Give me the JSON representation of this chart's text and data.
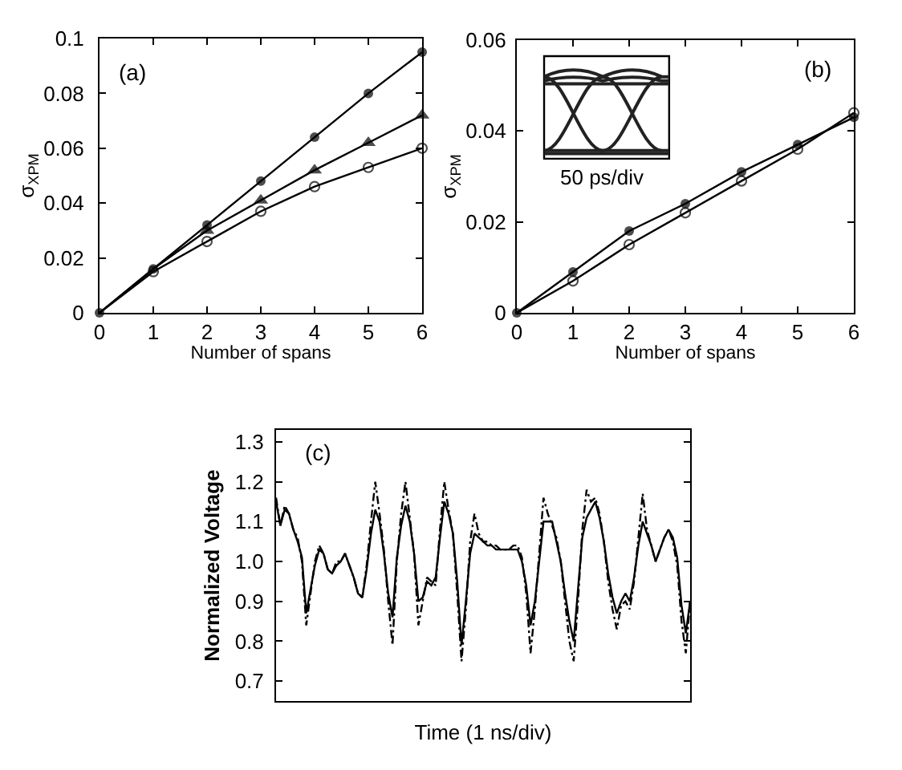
{
  "chart_data": [
    {
      "type": "line",
      "xlabel": "Number of spans",
      "ylabel": "σ$_{XPM}$",
      "annotations": [
        "(a)"
      ],
      "line_style": "solid",
      "x": [
        0,
        1,
        2,
        3,
        4,
        5,
        6
      ],
      "xlim": [
        0,
        6
      ],
      "xticks": [
        0,
        1,
        2,
        3,
        4,
        5,
        6
      ],
      "ylim": [
        0,
        0.1
      ],
      "yticks": [
        0,
        0.02,
        0.04,
        0.06,
        0.08,
        0.1
      ],
      "series": [
        {
          "color": "#000000",
          "marker": "circle",
          "values": [
            0,
            0.016,
            0.032,
            0.048,
            0.064,
            0.08,
            0.095
          ]
        },
        {
          "color": "#000000",
          "marker": "triangle",
          "values": [
            0,
            0.016,
            0.03,
            0.041,
            0.052,
            0.062,
            0.072
          ]
        },
        {
          "color": "#000000",
          "marker": "circle-open",
          "values": [
            0,
            0.015,
            0.026,
            0.037,
            0.046,
            0.053,
            0.06
          ]
        }
      ]
    },
    {
      "type": "line",
      "xlabel": "Number of spans",
      "ylabel": "σ$_{XPM}$",
      "annotations": [
        "(b)",
        "50 ps/div"
      ],
      "line_style": "solid",
      "x": [
        0,
        1,
        2,
        3,
        4,
        5,
        6
      ],
      "xlim": [
        0,
        6
      ],
      "xticks": [
        0,
        1,
        2,
        3,
        4,
        5,
        6
      ],
      "ylim": [
        0,
        0.06
      ],
      "yticks": [
        0,
        0.02,
        0.04,
        0.06
      ],
      "series": [
        {
          "color": "#000000",
          "marker": "circle",
          "values": [
            0,
            0.009,
            0.018,
            0.024,
            0.031,
            0.037,
            0.043
          ]
        },
        {
          "color": "#000000",
          "marker": "circle-open",
          "values": [
            0,
            0.007,
            0.015,
            0.022,
            0.029,
            0.036,
            0.044
          ]
        }
      ]
    },
    {
      "type": "line",
      "xlabel": "Time (1 ns/div)",
      "ylabel": "Normalized Voltage",
      "annotations": [
        "(c)"
      ],
      "categories": [
        null,
        null,
        null,
        null,
        null,
        null,
        null,
        null,
        null,
        null,
        null,
        null,
        null,
        null,
        null,
        null,
        null,
        null,
        null,
        null,
        null,
        null,
        null,
        null,
        null,
        null,
        null,
        null,
        null,
        null,
        null,
        null,
        null,
        null,
        null,
        null,
        null,
        null,
        null,
        null,
        null,
        null,
        null,
        null,
        null,
        null,
        null,
        null,
        null,
        null,
        null,
        null,
        null,
        null,
        null,
        null,
        null,
        null,
        null,
        null,
        null,
        null,
        null,
        null,
        null,
        null,
        null,
        null,
        null,
        null,
        null,
        null,
        null,
        null,
        null,
        null,
        null,
        null,
        null,
        null,
        null,
        null,
        null,
        null,
        null,
        null,
        null,
        null,
        null,
        null,
        null,
        null,
        null,
        null,
        null,
        null,
        null
      ],
      "ylim": [
        0.65,
        1.33
      ],
      "yticks": [
        0.7,
        0.8,
        0.9,
        {
          "value": 1,
          "label": "1.0"
        },
        1.1,
        1.2,
        1.3
      ],
      "series": [
        {
          "color": "#000000",
          "line_style": "dashed",
          "values": [
            1.16,
            1.09,
            1.14,
            1.12,
            1.08,
            1.06,
            1.0,
            0.84,
            0.92,
            1.0,
            1.04,
            1.02,
            0.98,
            0.97,
            1.0,
            1.0,
            1.02,
            0.99,
            0.96,
            0.92,
            0.91,
            0.99,
            1.1,
            1.2,
            1.12,
            1.03,
            0.9,
            0.79,
            1.0,
            1.12,
            1.2,
            1.11,
            1.02,
            0.84,
            0.9,
            0.96,
            0.95,
            0.94,
            1.08,
            1.2,
            1.13,
            1.07,
            0.92,
            0.75,
            0.88,
            1.05,
            1.12,
            1.07,
            1.05,
            1.05,
            1.04,
            1.04,
            1.03,
            1.03,
            1.03,
            1.04,
            1.04,
            1.01,
            0.92,
            0.77,
            0.88,
            1.02,
            1.16,
            1.12,
            1.09,
            1.06,
            1.0,
            0.9,
            0.8,
            0.75,
            0.9,
            1.08,
            1.18,
            1.15,
            1.16,
            1.12,
            1.05,
            0.95,
            0.88,
            0.83,
            0.89,
            0.9,
            0.88,
            0.95,
            1.06,
            1.17,
            1.08,
            1.04,
            1.0,
            1.03,
            1.06,
            1.08,
            1.05,
            0.99,
            0.85,
            0.77,
            0.9
          ]
        },
        {
          "color": "#000000",
          "line_style": "solid",
          "values": [
            1.15,
            1.09,
            1.13,
            1.12,
            1.08,
            1.05,
            1.01,
            0.87,
            0.93,
            0.99,
            1.03,
            1.02,
            0.98,
            0.97,
            0.99,
            1.0,
            1.02,
            0.99,
            0.96,
            0.92,
            0.91,
            0.98,
            1.07,
            1.13,
            1.1,
            1.02,
            0.92,
            0.86,
            1.01,
            1.09,
            1.14,
            1.1,
            1.02,
            0.9,
            0.91,
            0.95,
            0.94,
            0.96,
            1.06,
            1.15,
            1.12,
            1.07,
            0.95,
            0.79,
            0.9,
            1.02,
            1.07,
            1.06,
            1.05,
            1.04,
            1.04,
            1.03,
            1.03,
            1.03,
            1.03,
            1.03,
            1.03,
            1.0,
            0.94,
            0.84,
            0.9,
            1.0,
            1.1,
            1.1,
            1.1,
            1.05,
            1.0,
            0.92,
            0.85,
            0.8,
            0.93,
            1.06,
            1.11,
            1.13,
            1.15,
            1.11,
            1.05,
            0.97,
            0.91,
            0.87,
            0.9,
            0.92,
            0.9,
            0.96,
            1.04,
            1.1,
            1.07,
            1.04,
            1.0,
            1.03,
            1.06,
            1.08,
            1.06,
            1.01,
            0.89,
            0.82,
            0.9
          ]
        }
      ]
    }
  ]
}
